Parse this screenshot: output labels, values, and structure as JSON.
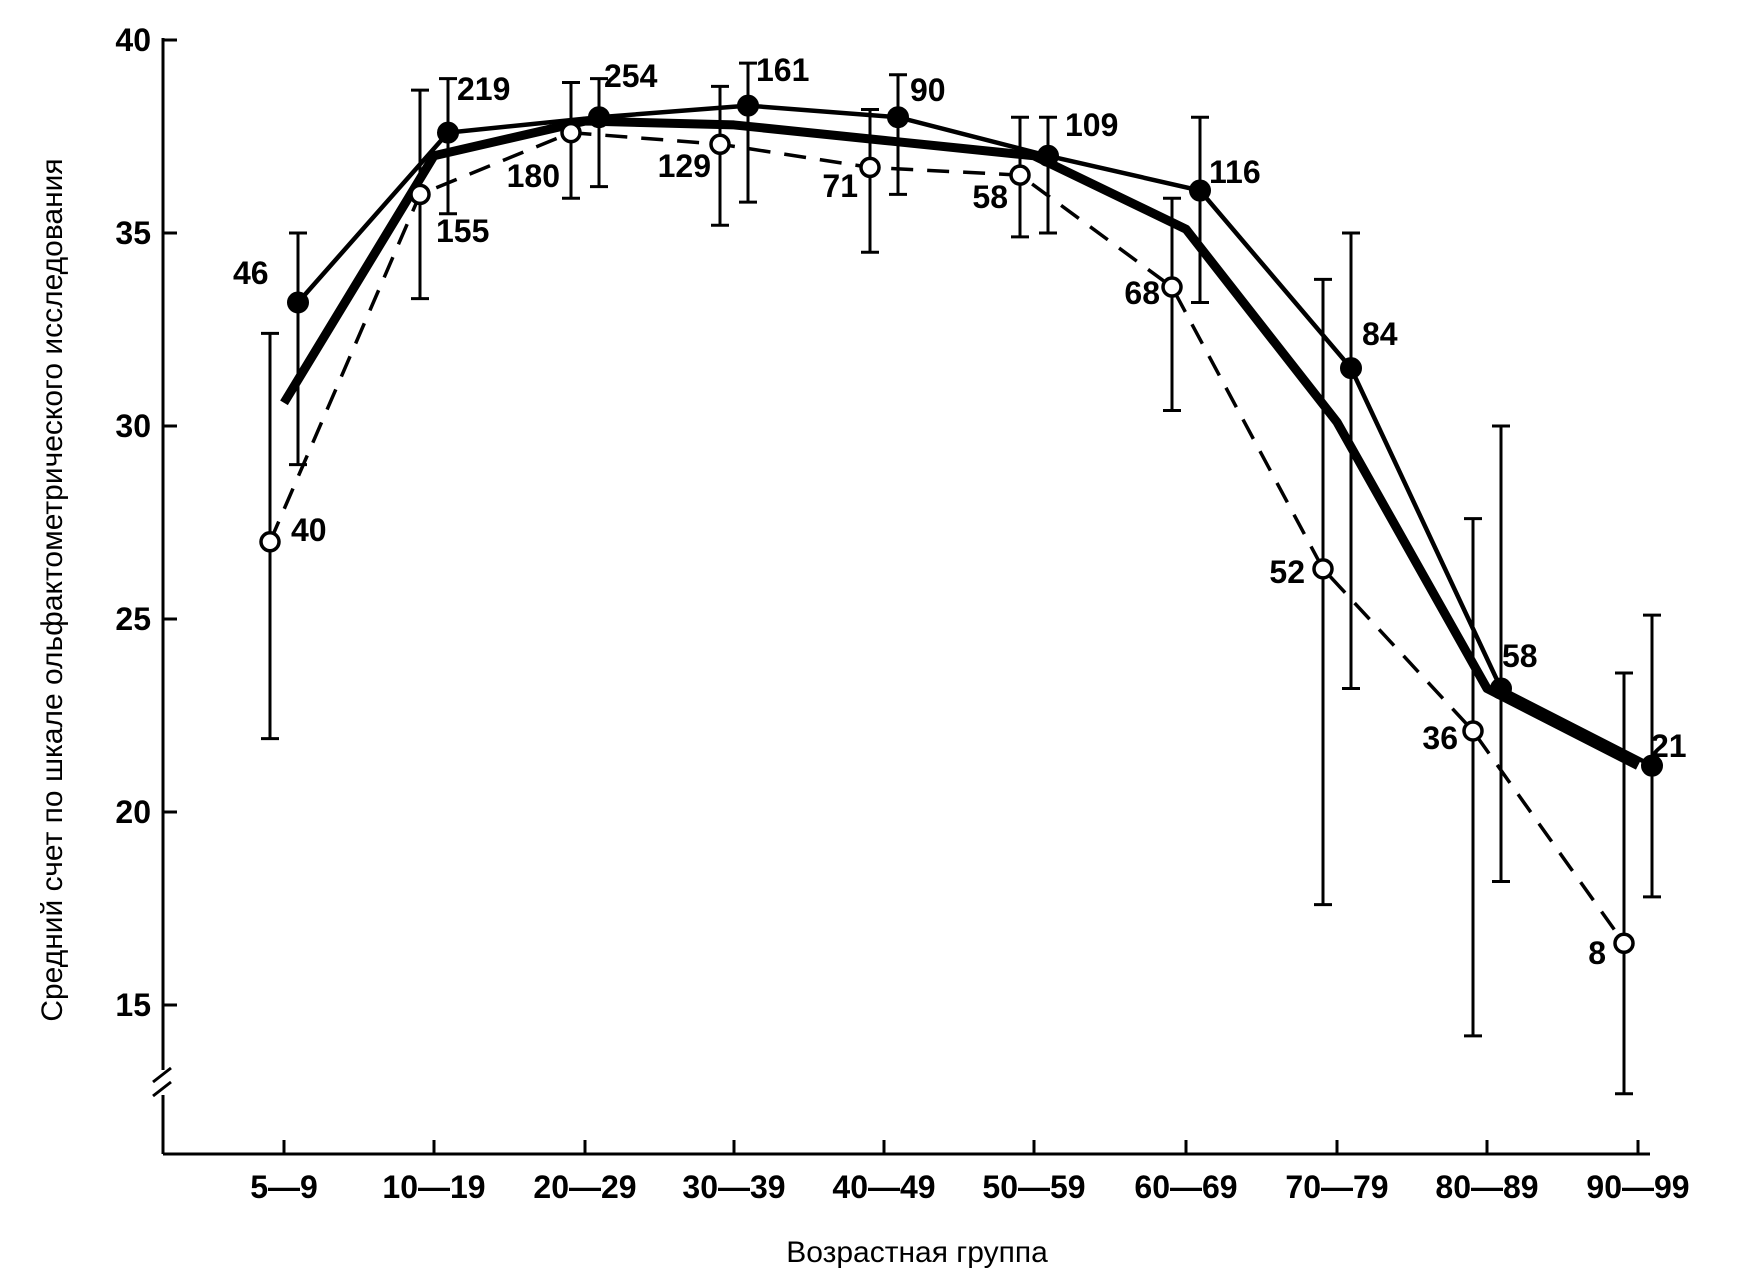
{
  "chart_data": {
    "type": "line",
    "xlabel": "Возрастная группа",
    "ylabel": "Средний счет по шкале ольфактометрического исследования",
    "ylim": [
      12,
      40
    ],
    "yticks": [
      15,
      20,
      25,
      30,
      35,
      40
    ],
    "axis_break": true,
    "categories": [
      "5—9",
      "10—19",
      "20—29",
      "30—39",
      "40—49",
      "50—59",
      "60—69",
      "70—79",
      "80—89",
      "90—99"
    ],
    "series": [
      {
        "style": "thin-solid-filled-markers",
        "values": [
          33.2,
          37.6,
          38.0,
          38.3,
          38.0,
          37.0,
          36.1,
          31.5,
          23.2,
          21.2
        ],
        "error_low": [
          29.0,
          35.5,
          36.2,
          35.8,
          36.0,
          35.0,
          33.2,
          23.2,
          18.2,
          17.8
        ],
        "error_high": [
          35.0,
          39.0,
          39.0,
          39.4,
          39.1,
          38.0,
          38.0,
          35.0,
          30.0,
          25.1
        ],
        "n_labels": [
          "46",
          "219",
          "254",
          "161",
          "90",
          "109",
          "116",
          "84",
          "58",
          "21"
        ]
      },
      {
        "style": "dashed-open-markers",
        "values": [
          27.0,
          36.0,
          37.6,
          37.3,
          36.7,
          36.5,
          33.6,
          26.3,
          22.1,
          16.6
        ],
        "error_low": [
          21.9,
          33.3,
          35.9,
          35.2,
          34.5,
          34.9,
          30.4,
          17.6,
          14.2,
          12.7
        ],
        "error_high": [
          32.4,
          38.7,
          38.9,
          38.8,
          38.2,
          38.0,
          35.9,
          33.8,
          27.6,
          23.6
        ],
        "n_labels": [
          "40",
          "155",
          "180",
          "129",
          "71",
          "58",
          "68",
          "52",
          "36",
          "8"
        ]
      },
      {
        "style": "thick-solid",
        "values": [
          30.6,
          37.0,
          37.9,
          37.8,
          37.4,
          37.0,
          35.1,
          30.1,
          23.2,
          21.2
        ]
      }
    ],
    "grid": false
  }
}
